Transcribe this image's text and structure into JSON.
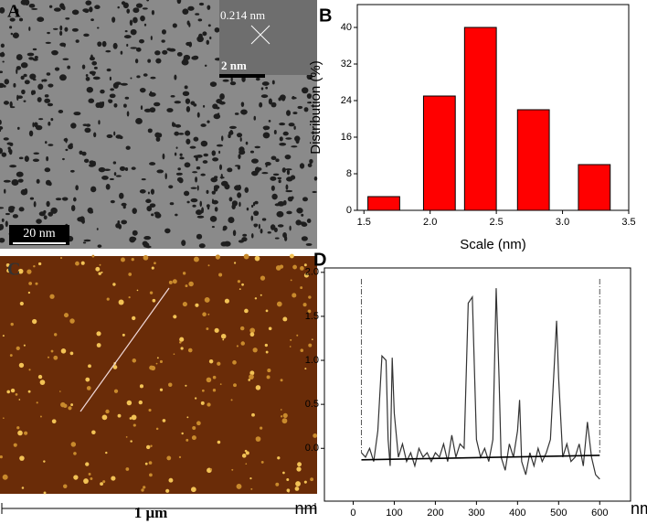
{
  "panels": {
    "a": {
      "label": "A",
      "lattice": "0.214 nm",
      "inset_scale": "2 nm",
      "scale": "20 nm"
    },
    "c": {
      "label": "C",
      "scale": "1 μm"
    }
  },
  "chart_data": [
    {
      "type": "bar",
      "panel_label": "B",
      "xlabel": "Scale (nm)",
      "ylabel": "Distribution (%)",
      "x": [
        1.65,
        2.07,
        2.38,
        2.78,
        3.24
      ],
      "values": [
        3,
        25,
        40,
        22,
        10
      ],
      "color": "#ff0000",
      "xlim": [
        1.45,
        3.5
      ],
      "xticks": [
        1.5,
        {
          "value": 2,
          "label": "2.0"
        },
        2.5,
        {
          "value": 3,
          "label": "3.0"
        },
        3.5
      ],
      "ylim": [
        0,
        45
      ],
      "yticks": [
        0,
        8,
        16,
        24,
        32,
        40
      ]
    },
    {
      "type": "line",
      "panel_label": "D",
      "x_unit_labels": [
        "nm",
        "nm"
      ],
      "series": [
        {
          "color": "#333333",
          "x": [
            20,
            30,
            40,
            50,
            60,
            70,
            80,
            85,
            90,
            95,
            100,
            110,
            120,
            130,
            140,
            150,
            160,
            170,
            180,
            190,
            200,
            210,
            220,
            230,
            240,
            250,
            260,
            270,
            280,
            290,
            300,
            310,
            320,
            330,
            340,
            348,
            355,
            360,
            370,
            380,
            390,
            400,
            405,
            410,
            420,
            430,
            440,
            450,
            460,
            470,
            480,
            490,
            495,
            500,
            510,
            520,
            530,
            540,
            550,
            560,
            570,
            580,
            590,
            600
          ],
          "values": [
            -0.05,
            -0.1,
            0.0,
            -0.15,
            0.2,
            1.05,
            1.0,
            0.1,
            -0.2,
            1.03,
            0.4,
            -0.1,
            0.05,
            -0.15,
            -0.05,
            -0.2,
            0.0,
            -0.1,
            -0.05,
            -0.15,
            -0.05,
            -0.1,
            0.05,
            -0.15,
            0.15,
            -0.1,
            0.05,
            0.0,
            1.65,
            1.72,
            0.1,
            -0.1,
            0.0,
            -0.15,
            0.1,
            1.82,
            0.8,
            -0.1,
            -0.25,
            0.05,
            -0.1,
            0.2,
            0.55,
            -0.15,
            -0.3,
            -0.05,
            -0.2,
            0.0,
            -0.15,
            -0.05,
            0.1,
            1.0,
            1.45,
            0.8,
            -0.1,
            0.05,
            -0.15,
            -0.1,
            0.05,
            -0.2,
            0.3,
            -0.1,
            -0.3,
            -0.35
          ]
        },
        {
          "color": "#000000",
          "x": [
            20,
            600
          ],
          "values": [
            -0.13,
            -0.08
          ]
        }
      ],
      "markers": [
        20,
        600
      ],
      "xlim": [
        -70,
        675
      ],
      "xticks": [
        0,
        100,
        200,
        300,
        400,
        500,
        600
      ],
      "ylim": [
        -0.6,
        2.05
      ],
      "yticks": [
        {
          "value": 0,
          "label": "0.0"
        },
        0.5,
        {
          "value": 1,
          "label": "1.0"
        },
        1.5,
        {
          "value": 2,
          "label": "2.0"
        }
      ]
    }
  ]
}
